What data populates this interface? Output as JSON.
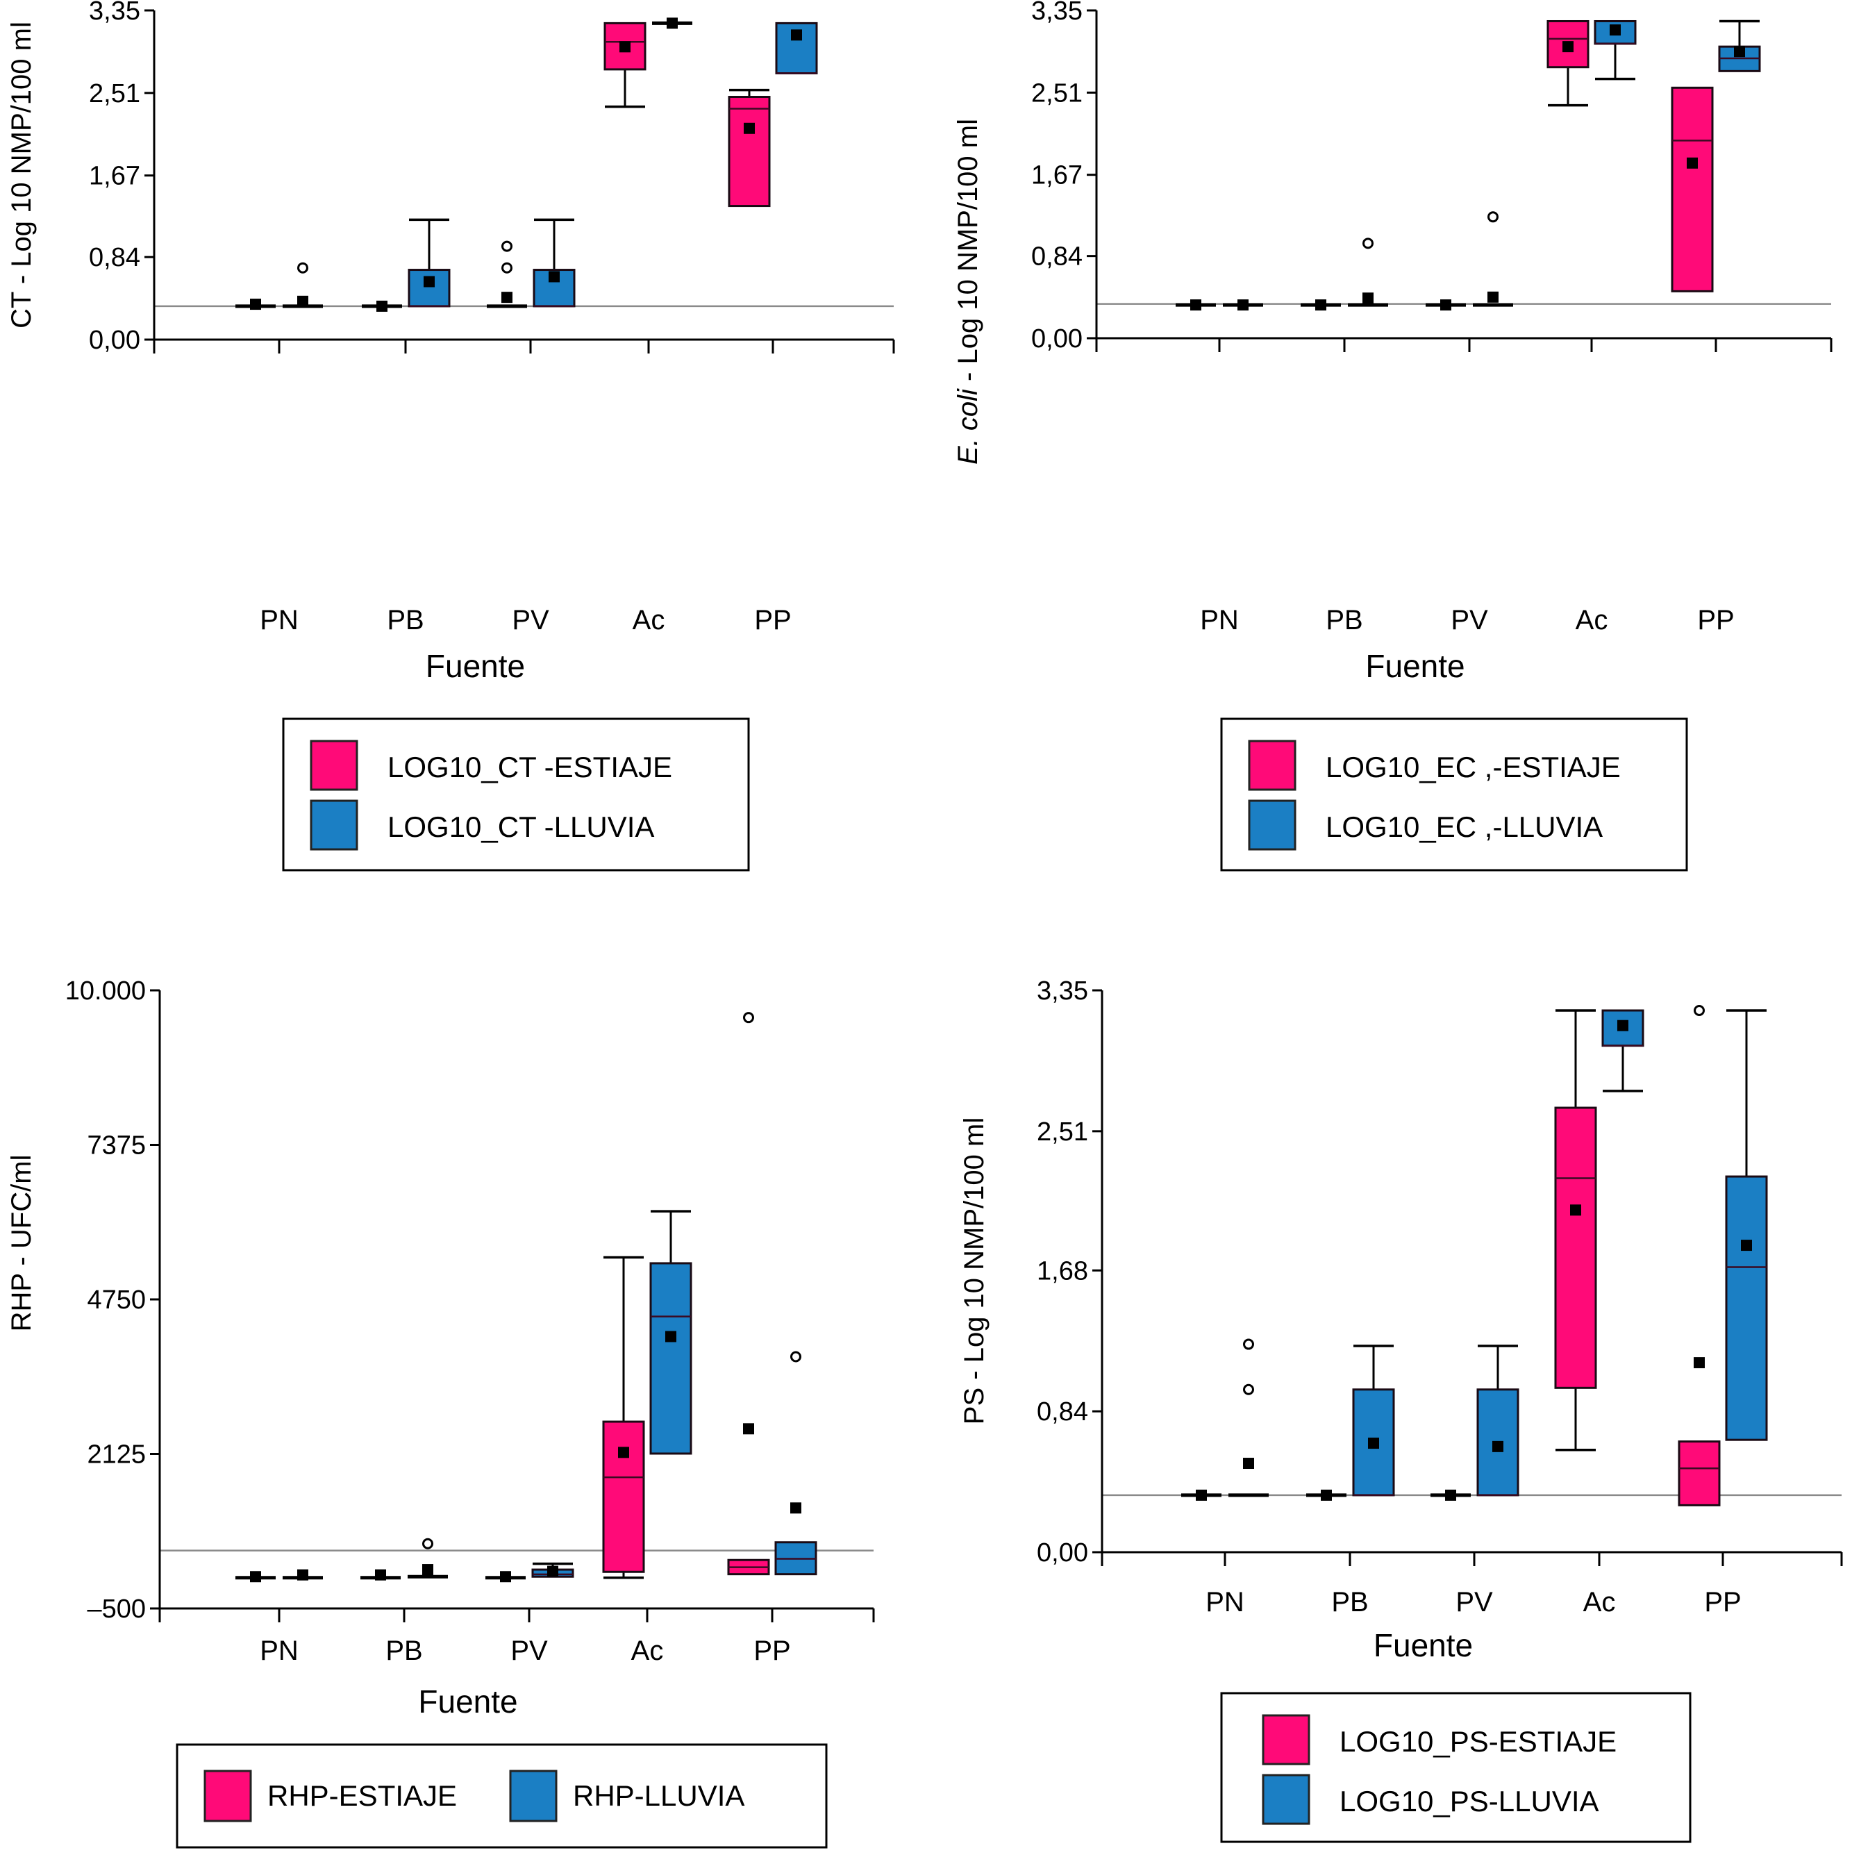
{
  "colors": {
    "estiaje": "#ff0a78",
    "lluvia": "#1b7fc4",
    "reference_line": "#8a8a8a",
    "axis": "#000000"
  },
  "chart_data": [
    {
      "id": "ct",
      "type": "boxplot",
      "ylabel_parts": [
        {
          "text": "CT - Log 10 NMP/100 ml",
          "italic": false
        }
      ],
      "xlabel": "Fuente",
      "categories": [
        "PN",
        "PB",
        "PV",
        "Ac",
        "PP"
      ],
      "yticks": [
        0.0,
        0.84,
        1.67,
        2.51,
        3.35
      ],
      "ytick_labels": [
        "0,00",
        "0,84",
        "1,67",
        "2,51",
        "3,35"
      ],
      "ylim": [
        0,
        3.35
      ],
      "reference_line": 0.34,
      "legend_layout": "stacked",
      "series": [
        {
          "name": "LOG10_CT -ESTIAJE",
          "color_key": "estiaje",
          "boxes": [
            {
              "category": "PN",
              "q1": 0.34,
              "median": 0.34,
              "q3": 0.34,
              "whisker_low": 0.34,
              "whisker_high": 0.34,
              "mean": 0.36,
              "outliers": []
            },
            {
              "category": "PB",
              "q1": 0.34,
              "median": 0.34,
              "q3": 0.34,
              "whisker_low": 0.34,
              "whisker_high": 0.34,
              "mean": 0.34,
              "outliers": []
            },
            {
              "category": "PV",
              "q1": 0.34,
              "median": 0.34,
              "q3": 0.36,
              "whisker_low": 0.34,
              "whisker_high": 0.36,
              "mean": 0.43,
              "outliers": [
                0.73,
                0.95
              ]
            },
            {
              "category": "Ac",
              "q1": 2.75,
              "median": 3.03,
              "q3": 3.22,
              "whisker_low": 2.37,
              "whisker_high": 3.22,
              "mean": 2.98,
              "outliers": []
            },
            {
              "category": "PP",
              "q1": 1.36,
              "median": 2.35,
              "q3": 2.47,
              "whisker_low": 1.36,
              "whisker_high": 2.54,
              "mean": 2.15,
              "outliers": []
            }
          ]
        },
        {
          "name": "LOG10_CT -LLUVIA",
          "color_key": "lluvia",
          "boxes": [
            {
              "category": "PN",
              "q1": 0.34,
              "median": 0.34,
              "q3": 0.34,
              "whisker_low": 0.34,
              "whisker_high": 0.34,
              "mean": 0.39,
              "outliers": [
                0.73
              ]
            },
            {
              "category": "PB",
              "q1": 0.34,
              "median": 0.34,
              "q3": 0.71,
              "whisker_low": 0.34,
              "whisker_high": 1.22,
              "mean": 0.59,
              "outliers": []
            },
            {
              "category": "PV",
              "q1": 0.34,
              "median": 0.34,
              "q3": 0.71,
              "whisker_low": 0.34,
              "whisker_high": 1.22,
              "mean": 0.64,
              "outliers": []
            },
            {
              "category": "Ac",
              "q1": 3.22,
              "median": 3.22,
              "q3": 3.22,
              "whisker_low": 3.22,
              "whisker_high": 3.22,
              "mean": 3.22,
              "outliers": []
            },
            {
              "category": "PP",
              "q1": 2.71,
              "median": 2.71,
              "q3": 3.22,
              "whisker_low": 2.71,
              "whisker_high": 3.22,
              "mean": 3.1,
              "outliers": []
            }
          ]
        }
      ]
    },
    {
      "id": "ec",
      "type": "boxplot",
      "ylabel_parts": [
        {
          "text": "E. coli",
          "italic": true
        },
        {
          "text": " - Log 10 NMP/100 ml",
          "italic": false
        }
      ],
      "xlabel": "Fuente",
      "categories": [
        "PN",
        "PB",
        "PV",
        "Ac",
        "PP"
      ],
      "yticks": [
        0.0,
        0.84,
        1.67,
        2.51,
        3.35
      ],
      "ytick_labels": [
        "0,00",
        "0,84",
        "1,67",
        "2,51",
        "3,35"
      ],
      "ylim": [
        0,
        3.35
      ],
      "reference_line": 0.35,
      "legend_layout": "stacked",
      "series": [
        {
          "name": "LOG10_EC ,-ESTIAJE",
          "color_key": "estiaje",
          "boxes": [
            {
              "category": "PN",
              "q1": 0.34,
              "median": 0.34,
              "q3": 0.34,
              "whisker_low": 0.34,
              "whisker_high": 0.34,
              "mean": 0.34,
              "outliers": []
            },
            {
              "category": "PB",
              "q1": 0.34,
              "median": 0.34,
              "q3": 0.34,
              "whisker_low": 0.34,
              "whisker_high": 0.34,
              "mean": 0.34,
              "outliers": []
            },
            {
              "category": "PV",
              "q1": 0.34,
              "median": 0.34,
              "q3": 0.34,
              "whisker_low": 0.34,
              "whisker_high": 0.34,
              "mean": 0.34,
              "outliers": []
            },
            {
              "category": "Ac",
              "q1": 2.77,
              "median": 3.06,
              "q3": 3.24,
              "whisker_low": 2.38,
              "whisker_high": 3.24,
              "mean": 2.98,
              "outliers": []
            },
            {
              "category": "PP",
              "q1": 0.48,
              "median": 2.02,
              "q3": 2.56,
              "whisker_low": 0.48,
              "whisker_high": 2.56,
              "mean": 1.79,
              "outliers": []
            }
          ]
        },
        {
          "name": "LOG10_EC ,-LLUVIA",
          "color_key": "lluvia",
          "boxes": [
            {
              "category": "PN",
              "q1": 0.34,
              "median": 0.34,
              "q3": 0.34,
              "whisker_low": 0.34,
              "whisker_high": 0.34,
              "mean": 0.34,
              "outliers": []
            },
            {
              "category": "PB",
              "q1": 0.34,
              "median": 0.34,
              "q3": 0.34,
              "whisker_low": 0.34,
              "whisker_high": 0.34,
              "mean": 0.41,
              "outliers": [
                0.97
              ]
            },
            {
              "category": "PV",
              "q1": 0.34,
              "median": 0.34,
              "q3": 0.34,
              "whisker_low": 0.34,
              "whisker_high": 0.34,
              "mean": 0.42,
              "outliers": [
                1.24
              ]
            },
            {
              "category": "Ac",
              "q1": 3.01,
              "median": 3.01,
              "q3": 3.24,
              "whisker_low": 2.65,
              "whisker_high": 3.24,
              "mean": 3.15,
              "outliers": []
            },
            {
              "category": "PP",
              "q1": 2.73,
              "median": 2.86,
              "q3": 2.98,
              "whisker_low": 2.73,
              "whisker_high": 3.24,
              "mean": 2.93,
              "outliers": []
            }
          ]
        }
      ]
    },
    {
      "id": "rhp",
      "type": "boxplot",
      "ylabel_parts": [
        {
          "text": "RHP - UFC/ml",
          "italic": false
        }
      ],
      "xlabel": "Fuente",
      "categories": [
        "PN",
        "PB",
        "PV",
        "Ac",
        "PP"
      ],
      "yticks": [
        -500,
        2125,
        4750,
        7375,
        10000
      ],
      "ytick_labels": [
        "–500",
        "2125",
        "4750",
        "7375",
        "10.000"
      ],
      "ylim": [
        -500,
        10000
      ],
      "reference_line": 484,
      "legend_layout": "inline",
      "series": [
        {
          "name": "RHP-ESTIAJE",
          "color_key": "estiaje",
          "boxes": [
            {
              "category": "PN",
              "q1": 22,
              "median": 22,
              "q3": 22,
              "whisker_low": 22,
              "whisker_high": 22,
              "mean": 40,
              "outliers": []
            },
            {
              "category": "PB",
              "q1": 22,
              "median": 22,
              "q3": 22,
              "whisker_low": 22,
              "whisker_high": 22,
              "mean": 70,
              "outliers": []
            },
            {
              "category": "PV",
              "q1": 22,
              "median": 22,
              "q3": 22,
              "whisker_low": 22,
              "whisker_high": 22,
              "mean": 40,
              "outliers": []
            },
            {
              "category": "Ac",
              "q1": 122,
              "median": 1729,
              "q3": 2673,
              "whisker_low": 22,
              "whisker_high": 5464,
              "mean": 2151,
              "outliers": []
            },
            {
              "category": "PP",
              "q1": 82,
              "median": 200,
              "q3": 323,
              "whisker_low": 82,
              "whisker_high": 323,
              "mean": 2552,
              "outliers": [
                9538
              ]
            }
          ]
        },
        {
          "name": "RHP-LLUVIA",
          "color_key": "lluvia",
          "boxes": [
            {
              "category": "PN",
              "q1": 22,
              "median": 22,
              "q3": 22,
              "whisker_low": 22,
              "whisker_high": 22,
              "mean": 70,
              "outliers": []
            },
            {
              "category": "PB",
              "q1": 40,
              "median": 40,
              "q3": 40,
              "whisker_low": 40,
              "whisker_high": 40,
              "mean": 160,
              "outliers": [
                600
              ]
            },
            {
              "category": "PV",
              "q1": 40,
              "median": 80,
              "q3": 160,
              "whisker_low": 40,
              "whisker_high": 260,
              "mean": 130,
              "outliers": []
            },
            {
              "category": "Ac",
              "q1": 2131,
              "median": 4460,
              "q3": 5364,
              "whisker_low": 2131,
              "whisker_high": 6247,
              "mean": 4119,
              "outliers": []
            },
            {
              "category": "PP",
              "q1": 82,
              "median": 343,
              "q3": 624,
              "whisker_low": 82,
              "whisker_high": 624,
              "mean": 1207,
              "outliers": [
                3777
              ]
            }
          ]
        }
      ]
    },
    {
      "id": "ps",
      "type": "boxplot",
      "ylabel_parts": [
        {
          "text": "PS - Log 10 NMP/100 ml",
          "italic": false
        }
      ],
      "xlabel": "Fuente",
      "categories": [
        "PN",
        "PB",
        "PV",
        "Ac",
        "PP"
      ],
      "yticks": [
        0.0,
        0.84,
        1.68,
        2.51,
        3.35
      ],
      "ytick_labels": [
        "0,00",
        "0,84",
        "1,68",
        "2,51",
        "3,35"
      ],
      "ylim": [
        0,
        3.35
      ],
      "reference_line": 0.34,
      "legend_layout": "stacked",
      "series": [
        {
          "name": "LOG10_PS-ESTIAJE",
          "color_key": "estiaje",
          "boxes": [
            {
              "category": "PN",
              "q1": 0.34,
              "median": 0.34,
              "q3": 0.34,
              "whisker_low": 0.34,
              "whisker_high": 0.34,
              "mean": 0.34,
              "outliers": []
            },
            {
              "category": "PB",
              "q1": 0.34,
              "median": 0.34,
              "q3": 0.34,
              "whisker_low": 0.34,
              "whisker_high": 0.34,
              "mean": 0.34,
              "outliers": []
            },
            {
              "category": "PV",
              "q1": 0.34,
              "median": 0.34,
              "q3": 0.34,
              "whisker_low": 0.34,
              "whisker_high": 0.34,
              "mean": 0.34,
              "outliers": []
            },
            {
              "category": "Ac",
              "q1": 0.98,
              "median": 2.23,
              "q3": 2.65,
              "whisker_low": 0.61,
              "whisker_high": 3.23,
              "mean": 2.04,
              "outliers": []
            },
            {
              "category": "PP",
              "q1": 0.28,
              "median": 0.5,
              "q3": 0.66,
              "whisker_low": 0.28,
              "whisker_high": 0.66,
              "mean": 1.13,
              "outliers": [
                3.23
              ]
            }
          ]
        },
        {
          "name": "LOG10_PS-LLUVIA",
          "color_key": "lluvia",
          "boxes": [
            {
              "category": "PN",
              "q1": 0.34,
              "median": 0.34,
              "q3": 0.34,
              "whisker_low": 0.34,
              "whisker_high": 0.34,
              "mean": 0.53,
              "outliers": [
                0.97,
                1.24
              ]
            },
            {
              "category": "PB",
              "q1": 0.34,
              "median": 0.34,
              "q3": 0.97,
              "whisker_low": 0.34,
              "whisker_high": 1.23,
              "mean": 0.65,
              "outliers": []
            },
            {
              "category": "PV",
              "q1": 0.34,
              "median": 0.34,
              "q3": 0.97,
              "whisker_low": 0.34,
              "whisker_high": 1.23,
              "mean": 0.63,
              "outliers": []
            },
            {
              "category": "Ac",
              "q1": 3.02,
              "median": 3.02,
              "q3": 3.23,
              "whisker_low": 2.75,
              "whisker_high": 3.23,
              "mean": 3.14,
              "outliers": []
            },
            {
              "category": "PP",
              "q1": 0.67,
              "median": 1.7,
              "q3": 2.24,
              "whisker_low": 0.67,
              "whisker_high": 3.23,
              "mean": 1.83,
              "outliers": []
            }
          ]
        }
      ]
    }
  ]
}
